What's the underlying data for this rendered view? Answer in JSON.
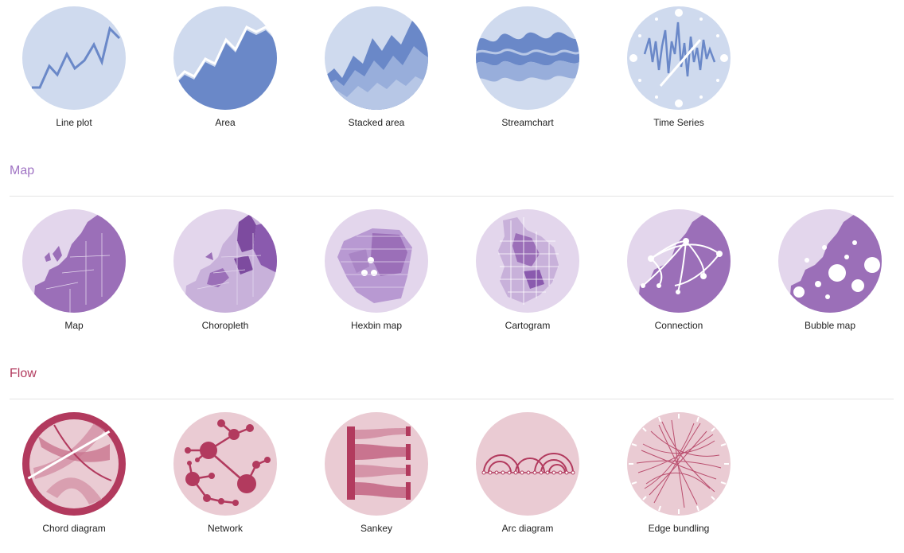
{
  "colors": {
    "time_bg": "#cfdaee",
    "time_fg": "#6a88c8",
    "map_bg": "#e3d6ec",
    "map_fg": "#9b6fb8",
    "map_title": "#a074c4",
    "flow_bg": "#eacbd3",
    "flow_fg": "#b23a5e",
    "flow_title": "#b23a5e"
  },
  "time_series": {
    "items": [
      {
        "label": "Line plot",
        "icon": "line-plot-icon"
      },
      {
        "label": "Area",
        "icon": "area-chart-icon"
      },
      {
        "label": "Stacked area",
        "icon": "stacked-area-icon"
      },
      {
        "label": "Streamchart",
        "icon": "streamchart-icon"
      },
      {
        "label": "Time Series",
        "icon": "time-series-icon"
      }
    ]
  },
  "map": {
    "title": "Map",
    "items": [
      {
        "label": "Map",
        "icon": "map-icon"
      },
      {
        "label": "Choropleth",
        "icon": "choropleth-icon"
      },
      {
        "label": "Hexbin map",
        "icon": "hexbin-map-icon"
      },
      {
        "label": "Cartogram",
        "icon": "cartogram-icon"
      },
      {
        "label": "Connection",
        "icon": "connection-map-icon"
      },
      {
        "label": "Bubble map",
        "icon": "bubble-map-icon"
      }
    ]
  },
  "flow": {
    "title": "Flow",
    "items": [
      {
        "label": "Chord diagram",
        "icon": "chord-diagram-icon"
      },
      {
        "label": "Network",
        "icon": "network-icon"
      },
      {
        "label": "Sankey",
        "icon": "sankey-icon"
      },
      {
        "label": "Arc diagram",
        "icon": "arc-diagram-icon"
      },
      {
        "label": "Edge bundling",
        "icon": "edge-bundling-icon"
      }
    ]
  }
}
